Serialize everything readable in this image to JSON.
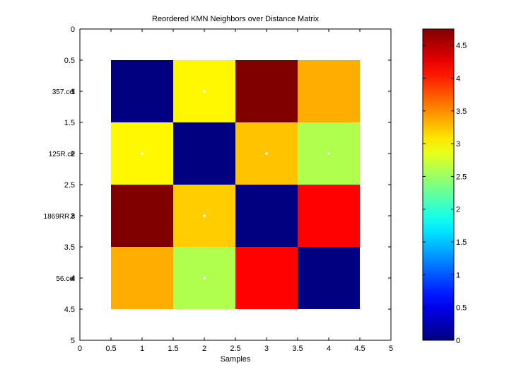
{
  "chart_data": {
    "type": "heatmap",
    "title": "Reordered KMN Neighbors over Distance Matrix",
    "xlabel": "Samples",
    "ylabel": "",
    "xlim": [
      0,
      5
    ],
    "ylim": [
      0,
      5
    ],
    "x_ticks": [
      "0",
      "0.5",
      "1",
      "1.5",
      "2",
      "2.5",
      "3",
      "3.5",
      "4",
      "4.5",
      "5"
    ],
    "y_ticks": [
      "0",
      "0.5",
      "1",
      "1.5",
      "2",
      "2.5",
      "3",
      "3.5",
      "4",
      "4.5",
      "5"
    ],
    "row_labels": [
      [
        "1",
        "357.cel"
      ],
      [
        "2",
        "125R.ce"
      ],
      [
        "3",
        "1869RR.c"
      ],
      [
        "4",
        "56.cel"
      ]
    ],
    "matrix": [
      [
        0.0,
        3.0,
        4.75,
        3.35
      ],
      [
        3.0,
        0.0,
        3.25,
        2.6
      ],
      [
        4.75,
        3.2,
        0.0,
        4.15
      ],
      [
        3.35,
        2.6,
        4.15,
        0.0
      ]
    ],
    "neighbor_markers": [
      [
        1,
        2
      ],
      [
        2,
        1
      ],
      [
        2,
        3
      ],
      [
        2,
        4
      ],
      [
        3,
        2
      ],
      [
        4,
        2
      ]
    ],
    "colormap": "jet",
    "colorbar": {
      "range": [
        0,
        4.75
      ],
      "ticks": [
        "0",
        "0.5",
        "1",
        "1.5",
        "2",
        "2.5",
        "3",
        "3.5",
        "4",
        "4.5"
      ]
    },
    "grid": false
  }
}
